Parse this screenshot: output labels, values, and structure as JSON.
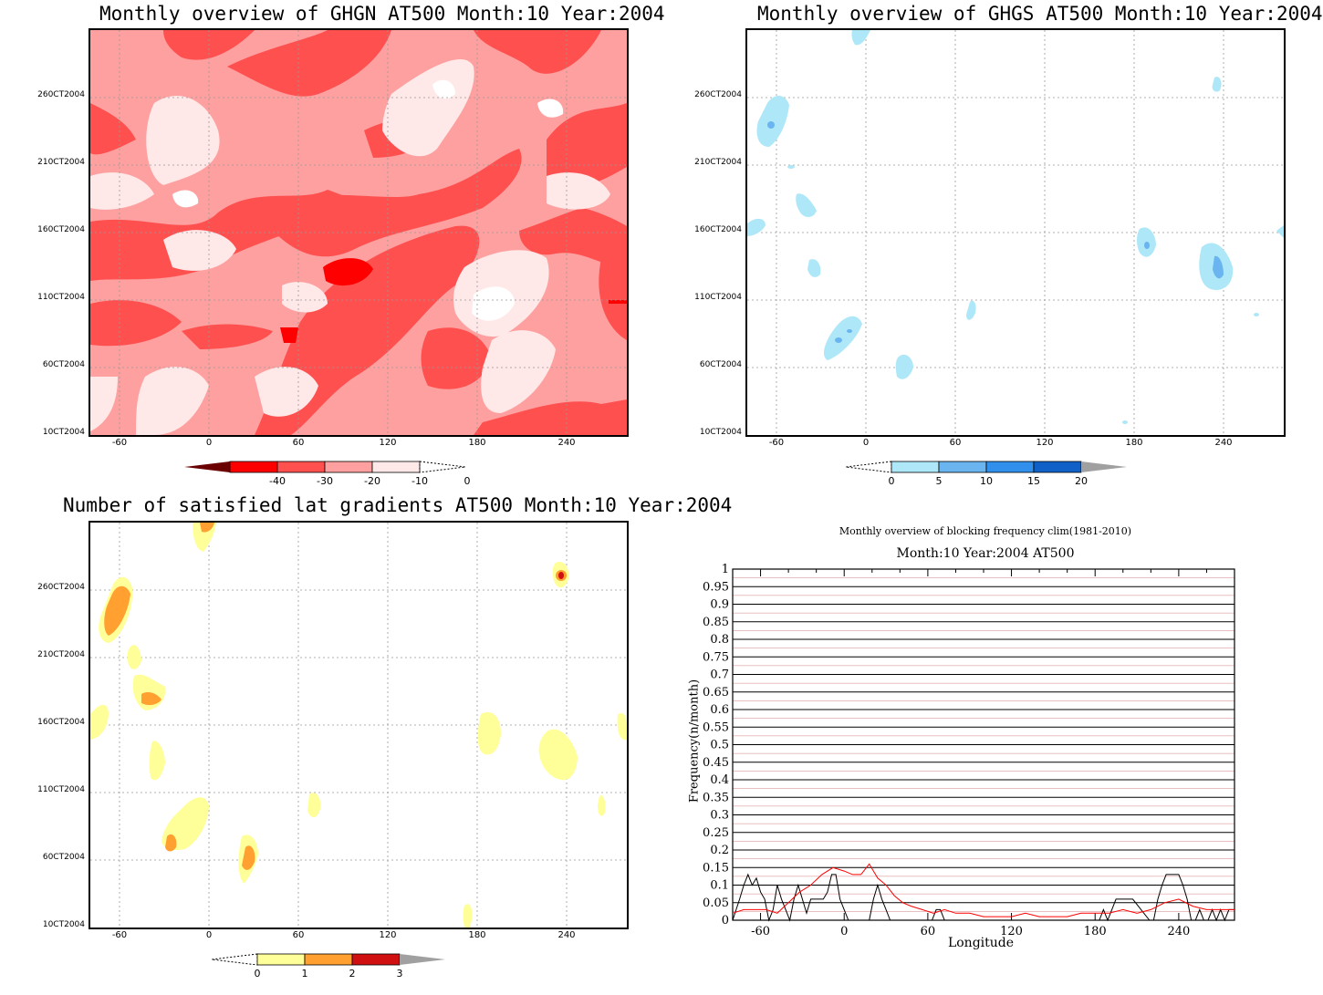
{
  "panels": {
    "ghgn": {
      "title": "Monthly overview of GHGN AT500 Month:10 Year:2004"
    },
    "ghgs": {
      "title": "Monthly overview of GHGS AT500 Month:10 Year:2004"
    },
    "latgrad": {
      "title": "Number of satisfied lat gradients AT500 Month:10 Year:2004"
    },
    "freq": {
      "title1": "Monthly overview of blocking frequency clim(1981-2010)",
      "title2": "Month:10 Year:2004  AT500",
      "ylabel": "Frequency(n/month)",
      "xlabel": "Longitude"
    }
  },
  "axes": {
    "x_ticks": [
      "-60",
      "0",
      "60",
      "120",
      "180",
      "240"
    ],
    "y_ticks": [
      "10CT2004",
      "60CT2004",
      "110CT2004",
      "160CT2004",
      "210CT2004",
      "260CT2004"
    ]
  },
  "colorbars": {
    "ghgn": {
      "labels": [
        "-40",
        "-30",
        "-20",
        "-10",
        "0"
      ],
      "colors": [
        "#6b0000",
        "#ff0000",
        "#ff5050",
        "#ffa0a0",
        "#ffe8e8"
      ]
    },
    "ghgs": {
      "labels": [
        "0",
        "5",
        "10",
        "15",
        "20"
      ],
      "colors": [
        "#aee8f8",
        "#6ab4f0",
        "#3090ec",
        "#1060c8",
        "#a0a0a0"
      ]
    },
    "latgrad": {
      "labels": [
        "0",
        "1",
        "2",
        "3"
      ],
      "colors": [
        "#ffff99",
        "#ffa030",
        "#d01010",
        "#a0a0a0"
      ]
    }
  },
  "chart_data": [
    {
      "type": "heatmap",
      "title": "Monthly overview of GHGN AT500 Month:10 Year:2004",
      "x_ticks": [
        -60,
        0,
        60,
        120,
        180,
        240
      ],
      "xlim": [
        -80,
        280
      ],
      "y_ticks": [
        "10CT2004",
        "60CT2004",
        "110CT2004",
        "160CT2004",
        "210CT2004",
        "260CT2004"
      ],
      "levels": [
        -40,
        -30,
        -20,
        -10,
        0
      ]
    },
    {
      "type": "heatmap",
      "title": "Monthly overview of GHGS AT500 Month:10 Year:2004",
      "x_ticks": [
        -60,
        0,
        60,
        120,
        180,
        240
      ],
      "xlim": [
        -80,
        280
      ],
      "levels": [
        0,
        5,
        10,
        15,
        20
      ]
    },
    {
      "type": "heatmap",
      "title": "Number of satisfied lat gradients AT500 Month:10 Year:2004",
      "x_ticks": [
        -60,
        0,
        60,
        120,
        180,
        240
      ],
      "xlim": [
        -80,
        280
      ],
      "levels": [
        0,
        1,
        2,
        3
      ]
    },
    {
      "type": "line",
      "title": "Monthly overview of blocking frequency clim(1981-2010)",
      "subtitle": "Month:10 Year:2004  AT500",
      "xlabel": "Longitude",
      "ylabel": "Frequency(n/month)",
      "xlim": [
        -80,
        280
      ],
      "ylim": [
        0,
        1
      ],
      "x_ticks": [
        -60,
        0,
        60,
        120,
        180,
        240
      ],
      "y_ticks": [
        0,
        0.05,
        0.1,
        0.15,
        0.2,
        0.25,
        0.3,
        0.35,
        0.4,
        0.45,
        0.5,
        0.55,
        0.6,
        0.65,
        0.7,
        0.75,
        0.8,
        0.85,
        0.9,
        0.95,
        1
      ],
      "series": [
        {
          "color": "#000000",
          "x": [
            -80,
            -75,
            -72,
            -69,
            -66,
            -63,
            -60,
            -57,
            -54,
            -51,
            -48,
            -45,
            -42,
            -39,
            -36,
            -33,
            -30,
            -27,
            -24,
            -21,
            -18,
            -15,
            -12,
            -9,
            -6,
            -3,
            0,
            3,
            6,
            9,
            12,
            15,
            18,
            21,
            24,
            27,
            30,
            33,
            36,
            39,
            42,
            45,
            48,
            51,
            54,
            57,
            60,
            63,
            66,
            69,
            72,
            75,
            165,
            168,
            171,
            174,
            177,
            180,
            183,
            186,
            189,
            192,
            195,
            198,
            201,
            204,
            207,
            219,
            222,
            225,
            228,
            231,
            234,
            237,
            240,
            243,
            246,
            249,
            252,
            255,
            258,
            261,
            264,
            267,
            270,
            273,
            276,
            280
          ],
          "values": [
            0,
            0.06,
            0.1,
            0.13,
            0.1,
            0.12,
            0.08,
            0.06,
            0,
            0.03,
            0.1,
            0.06,
            0.03,
            0,
            0.06,
            0.1,
            0.06,
            0.02,
            0.06,
            0.06,
            0.06,
            0.06,
            0.08,
            0.13,
            0.13,
            0.06,
            0.03,
            0,
            0,
            0,
            0,
            0,
            0,
            0.06,
            0.1,
            0.06,
            0.03,
            0,
            0,
            0,
            0,
            0,
            0,
            0,
            0,
            0,
            0,
            0,
            0.03,
            0.03,
            0,
            0,
            0,
            0,
            0,
            0,
            0,
            0,
            0,
            0.03,
            0,
            0.03,
            0.06,
            0.06,
            0.06,
            0.06,
            0.06,
            0,
            0,
            0.06,
            0.1,
            0.13,
            0.13,
            0.13,
            0.13,
            0.1,
            0.06,
            0,
            0,
            0.03,
            0,
            0,
            0.03,
            0,
            0.03,
            0,
            0.03,
            0.03
          ]
        },
        {
          "color": "#ff0000",
          "x": [
            -80,
            -72,
            -64,
            -56,
            -48,
            -40,
            -32,
            -24,
            -16,
            -8,
            0,
            6,
            12,
            18,
            24,
            30,
            36,
            42,
            48,
            56,
            64,
            72,
            80,
            90,
            100,
            110,
            120,
            130,
            140,
            150,
            160,
            170,
            180,
            190,
            200,
            210,
            220,
            230,
            240,
            250,
            260,
            270,
            280
          ],
          "values": [
            0.02,
            0.03,
            0.03,
            0.03,
            0.02,
            0.05,
            0.08,
            0.1,
            0.13,
            0.15,
            0.14,
            0.13,
            0.13,
            0.16,
            0.12,
            0.1,
            0.07,
            0.05,
            0.04,
            0.03,
            0.02,
            0.03,
            0.02,
            0.02,
            0.01,
            0.01,
            0.01,
            0.02,
            0.01,
            0.01,
            0.01,
            0.02,
            0.02,
            0.02,
            0.03,
            0.02,
            0.03,
            0.05,
            0.06,
            0.04,
            0.03,
            0.03,
            0.03
          ]
        }
      ]
    }
  ]
}
